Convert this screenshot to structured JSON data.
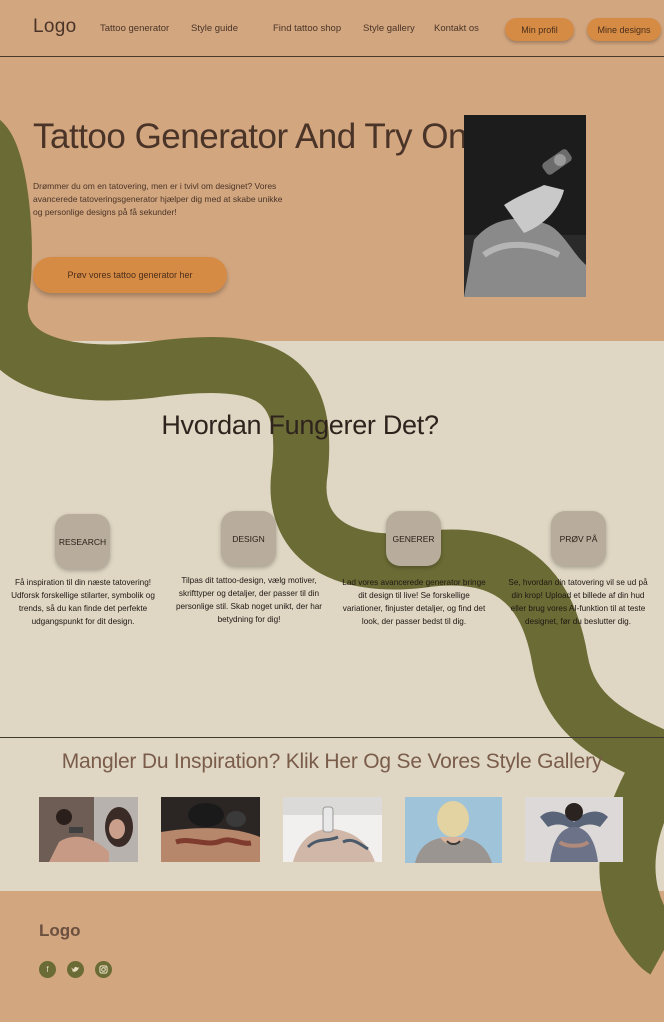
{
  "header": {
    "logo": "Logo",
    "nav": [
      "Tattoo generator",
      "Style guide",
      "Find tattoo shop",
      "Style gallery",
      "Kontakt os"
    ],
    "profile_button": "Min profil",
    "designs_button": "Mine designs"
  },
  "hero": {
    "title": "Tattoo Generator And Try On",
    "description": "Drømmer du om en tatovering, men er i tvivl om designet? Vores avancerede tatoveringsgenerator hjælper dig med at skabe unikke og personlige designs på få sekunder!",
    "cta": "Prøv vores tattoo generator her"
  },
  "how": {
    "title": "Hvordan Fungerer Det?",
    "steps": [
      {
        "label": "RESEARCH",
        "text": "Få inspiration til din næste tatovering! Udforsk forskellige stilarter, symbolik og trends, så du kan finde det perfekte udgangspunkt for dit design."
      },
      {
        "label": "DESIGN",
        "text": "Tilpas dit tattoo-design, vælg motiver, skrifttyper og detaljer, der passer til din personlige stil. Skab noget unikt, der har betydning for dig!"
      },
      {
        "label": "GENERER",
        "text": "Lad vores avancerede generator bringe dit design til live! Se forskellige variationer, finjuster detaljer, og find det look, der passer bedst til dig."
      },
      {
        "label": "PRØV PÅ",
        "text": "Se, hvordan din tatovering vil se ud på din krop! Upload et billede af din hud eller brug vores AI-funktion til at teste designet, før du beslutter dig."
      }
    ]
  },
  "gallery": {
    "title": "Mangler Du Inspiration? Klik Her Og Se Vores Style Gallery"
  },
  "footer": {
    "logo": "Logo",
    "social_icons": [
      "facebook-icon",
      "twitter-icon",
      "instagram-icon"
    ]
  },
  "colors": {
    "tan": "#d2a67f",
    "cream": "#dfd6c3",
    "olive": "#6b6b35",
    "accent": "#d68b45"
  }
}
